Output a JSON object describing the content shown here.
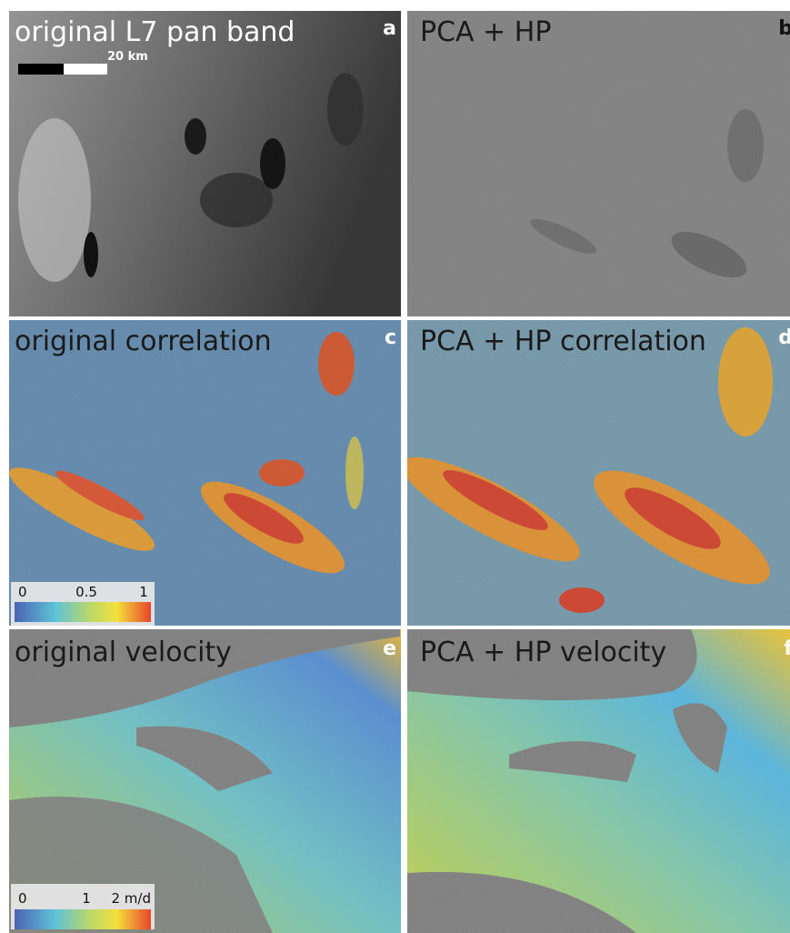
{
  "panels": [
    {
      "label": "original L7 pan band",
      "letter": "a"
    },
    {
      "label": "PCA + HP",
      "letter": "b"
    },
    {
      "label": "original correlation",
      "letter": "c"
    },
    {
      "label": "PCA + HP correlation",
      "letter": "d"
    },
    {
      "label": "original velocity",
      "letter": "e"
    },
    {
      "label": "PCA + HP velocity",
      "letter": "f"
    }
  ],
  "scale_bar": "20 km",
  "correlation_colorbar": {
    "ticks": [
      "0",
      "0.5",
      "1"
    ]
  },
  "velocity_colorbar": {
    "ticks": [
      "0",
      "1",
      "2 m/d"
    ]
  }
}
